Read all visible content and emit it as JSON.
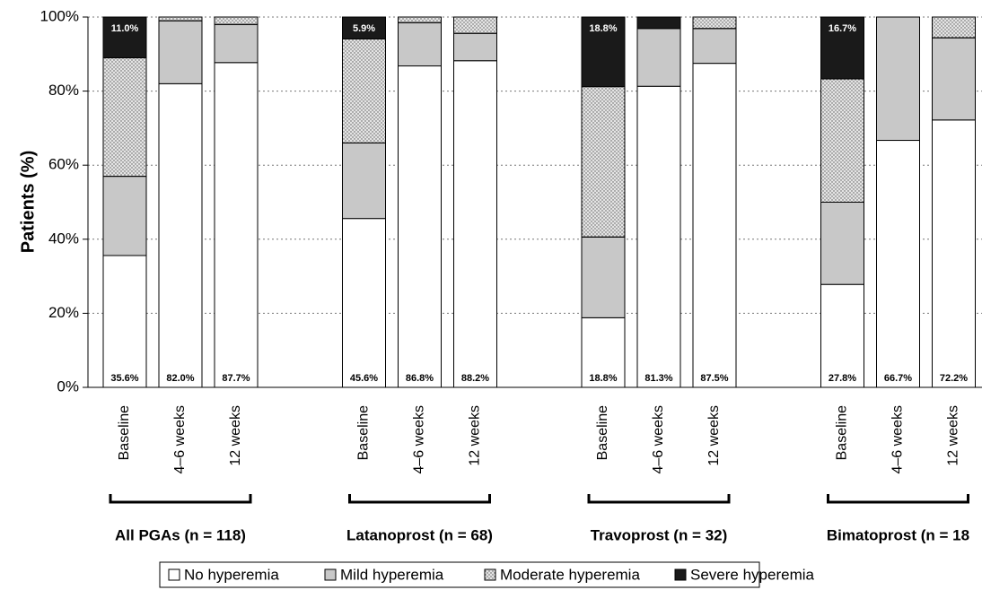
{
  "chart_data": {
    "type": "stacked-bar",
    "y_label": "Patients (%)",
    "categories": [
      "Baseline",
      "4–6 weeks",
      "12 weeks",
      "Baseline",
      "4–6 weeks",
      "12 weeks",
      "Baseline",
      "4–6 weeks",
      "12 weeks",
      "Baseline",
      "4–6 weeks",
      "12 weeks"
    ],
    "group_labels": [
      "All PGAs (n = 118)",
      "Latanoprost (n = 68)",
      "Travoprost (n = 32)",
      "Bimatoprost (n = 18"
    ],
    "series": [
      {
        "name": "No hyperemia",
        "color": "#ffffff",
        "values": [
          35.6,
          82.0,
          87.7,
          45.6,
          86.8,
          88.2,
          18.8,
          81.3,
          87.5,
          27.8,
          66.7,
          72.2
        ],
        "value_labels": [
          "35.6%",
          "82.0%",
          "87.7%",
          "45.6%",
          "86.8%",
          "88.2%",
          "18.8%",
          "81.3%",
          "87.5%",
          "27.8%",
          "66.7%",
          "72.2%"
        ]
      },
      {
        "name": "Mild hyperemia",
        "color": "#c8c8c8",
        "values": [
          21.4,
          17.0,
          10.3,
          20.4,
          11.7,
          7.4,
          21.8,
          15.6,
          9.4,
          22.2,
          33.3,
          22.2
        ]
      },
      {
        "name": "Moderate hyperemia",
        "color": "#e4e4e4",
        "values": [
          32.0,
          1.0,
          2.0,
          28.1,
          1.5,
          4.4,
          40.6,
          0,
          3.1,
          33.3,
          0,
          5.6
        ]
      },
      {
        "name": "Severe hyperemia",
        "color": "#1a1a1a",
        "values": [
          11.0,
          0,
          0,
          5.9,
          0,
          0,
          18.8,
          3.1,
          0,
          16.7,
          0,
          0
        ],
        "value_labels": [
          "11.0%",
          null,
          null,
          "5.9%",
          null,
          null,
          "18.8%",
          null,
          null,
          "16.7%",
          null,
          null
        ]
      }
    ],
    "ylim": [
      0,
      100
    ],
    "yticks": [
      {
        "value": 0,
        "label": "0%"
      },
      {
        "value": 20,
        "label": "20%"
      },
      {
        "value": 40,
        "label": "40%"
      },
      {
        "value": 60,
        "label": "60%"
      },
      {
        "value": 80,
        "label": "80%"
      },
      {
        "value": 100,
        "label": "100%"
      }
    ],
    "grid": true
  }
}
